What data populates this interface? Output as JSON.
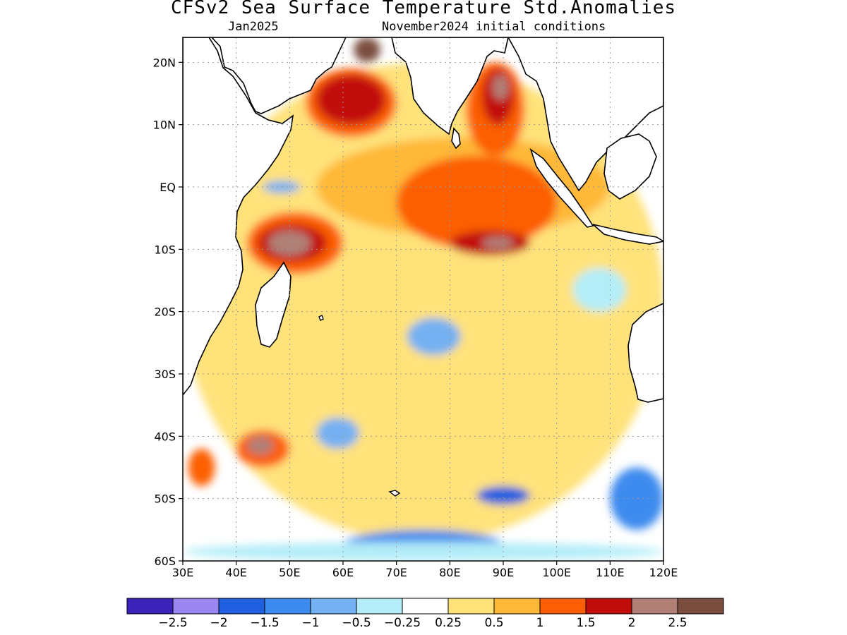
{
  "title": "CFSv2 Sea Surface Temperature Std.Anomalies",
  "subtitle_left": "Jan2025",
  "subtitle_right": "November2024 initial conditions",
  "map": {
    "lon_range": [
      30,
      120
    ],
    "lat_range": [
      -60,
      24
    ],
    "lat_ticks": [
      {
        "value": 20,
        "label": "20N"
      },
      {
        "value": 10,
        "label": "10N"
      },
      {
        "value": 0,
        "label": "EQ"
      },
      {
        "value": -10,
        "label": "10S"
      },
      {
        "value": -20,
        "label": "20S"
      },
      {
        "value": -30,
        "label": "30S"
      },
      {
        "value": -40,
        "label": "40S"
      },
      {
        "value": -50,
        "label": "50S"
      },
      {
        "value": -60,
        "label": "60S"
      }
    ],
    "lon_ticks": [
      {
        "value": 30,
        "label": "30E"
      },
      {
        "value": 40,
        "label": "40E"
      },
      {
        "value": 50,
        "label": "50E"
      },
      {
        "value": 60,
        "label": "60E"
      },
      {
        "value": 70,
        "label": "70E"
      },
      {
        "value": 80,
        "label": "80E"
      },
      {
        "value": 90,
        "label": "90E"
      },
      {
        "value": 100,
        "label": "100E"
      },
      {
        "value": 110,
        "label": "110E"
      },
      {
        "value": 120,
        "label": "120E"
      }
    ],
    "grid": true,
    "land_color": "#ffffff",
    "coastline_color": "#000000"
  },
  "colorbar": {
    "colors": [
      "#3b22b8",
      "#9a86f0",
      "#1f5fe0",
      "#3d8bee",
      "#74b1f2",
      "#b3edf8",
      "#ffffff",
      "#ffe27a",
      "#ffb838",
      "#fc5e05",
      "#c20d0d",
      "#b08077",
      "#7a4d3f"
    ],
    "labels": [
      "−2.5",
      "−2",
      "−1.5",
      "−1",
      "−0.5",
      "−0.25",
      "0.25",
      "0.5",
      "1",
      "1.5",
      "2",
      "2.5"
    ]
  },
  "anomaly_regions": [
    {
      "level": 0.5,
      "lon": [
        30,
        120
      ],
      "lat": [
        -57,
        20
      ],
      "color": "#ffe27a"
    },
    {
      "level": 1,
      "lon": [
        55,
        110
      ],
      "lat": [
        -8,
        8
      ],
      "color": "#ffb838"
    },
    {
      "level": 1.5,
      "lon": [
        70,
        100
      ],
      "lat": [
        -10,
        5
      ],
      "color": "#fc5e05"
    },
    {
      "level": 2,
      "lon": [
        80,
        95
      ],
      "lat": [
        -11,
        -7
      ],
      "color": "#c20d0d"
    },
    {
      "level": 2.5,
      "lon": [
        86,
        92
      ],
      "lat": [
        -10,
        -8
      ],
      "color": "#b08077"
    },
    {
      "level": 1.5,
      "lon": [
        53,
        70
      ],
      "lat": [
        8,
        19
      ],
      "color": "#fc5e05"
    },
    {
      "level": 2,
      "lon": [
        55,
        68
      ],
      "lat": [
        10,
        18
      ],
      "color": "#c20d0d"
    },
    {
      "level": 3,
      "lon": [
        62,
        67
      ],
      "lat": [
        20,
        24
      ],
      "color": "#7a4d3f"
    },
    {
      "level": 1.5,
      "lon": [
        83,
        94
      ],
      "lat": [
        5,
        20
      ],
      "color": "#fc5e05"
    },
    {
      "level": 2,
      "lon": [
        86,
        92
      ],
      "lat": [
        10,
        19
      ],
      "color": "#c20d0d"
    },
    {
      "level": 2.5,
      "lon": [
        88,
        91
      ],
      "lat": [
        14,
        18
      ],
      "color": "#b08077"
    },
    {
      "level": 1.5,
      "lon": [
        42,
        60
      ],
      "lat": [
        -14,
        -4
      ],
      "color": "#fc5e05"
    },
    {
      "level": 2,
      "lon": [
        44,
        57
      ],
      "lat": [
        -12,
        -6
      ],
      "color": "#c20d0d"
    },
    {
      "level": 2.5,
      "lon": [
        46,
        54
      ],
      "lat": [
        -11,
        -7
      ],
      "color": "#b08077"
    },
    {
      "level": 1.5,
      "lon": [
        40,
        50
      ],
      "lat": [
        -45,
        -39
      ],
      "color": "#fc5e05"
    },
    {
      "level": 2.5,
      "lon": [
        42,
        47
      ],
      "lat": [
        -43,
        -40
      ],
      "color": "#b08077"
    },
    {
      "level": 1.5,
      "lon": [
        31,
        36
      ],
      "lat": [
        -48,
        -42
      ],
      "color": "#fc5e05"
    },
    {
      "level": -1,
      "lon": [
        72,
        82
      ],
      "lat": [
        -27,
        -21
      ],
      "color": "#74b1f2"
    },
    {
      "level": -1,
      "lon": [
        55,
        63
      ],
      "lat": [
        -42,
        -37
      ],
      "color": "#74b1f2"
    },
    {
      "level": -1,
      "lon": [
        110,
        120
      ],
      "lat": [
        -55,
        -45
      ],
      "color": "#3d8bee"
    },
    {
      "level": -1,
      "lon": [
        60,
        90
      ],
      "lat": [
        -60,
        -55
      ],
      "color": "#3d8bee"
    },
    {
      "level": -1.5,
      "lon": [
        85,
        95
      ],
      "lat": [
        -51,
        -48
      ],
      "color": "#1f5fe0"
    },
    {
      "level": -0.5,
      "lon": [
        30,
        120
      ],
      "lat": [
        -60,
        -57
      ],
      "color": "#b3edf8"
    },
    {
      "level": -0.5,
      "lon": [
        103,
        113
      ],
      "lat": [
        -20,
        -13
      ],
      "color": "#b3edf8"
    },
    {
      "level": -0.5,
      "lon": [
        45,
        52
      ],
      "lat": [
        -1,
        1
      ],
      "color": "#74b1f2"
    }
  ]
}
